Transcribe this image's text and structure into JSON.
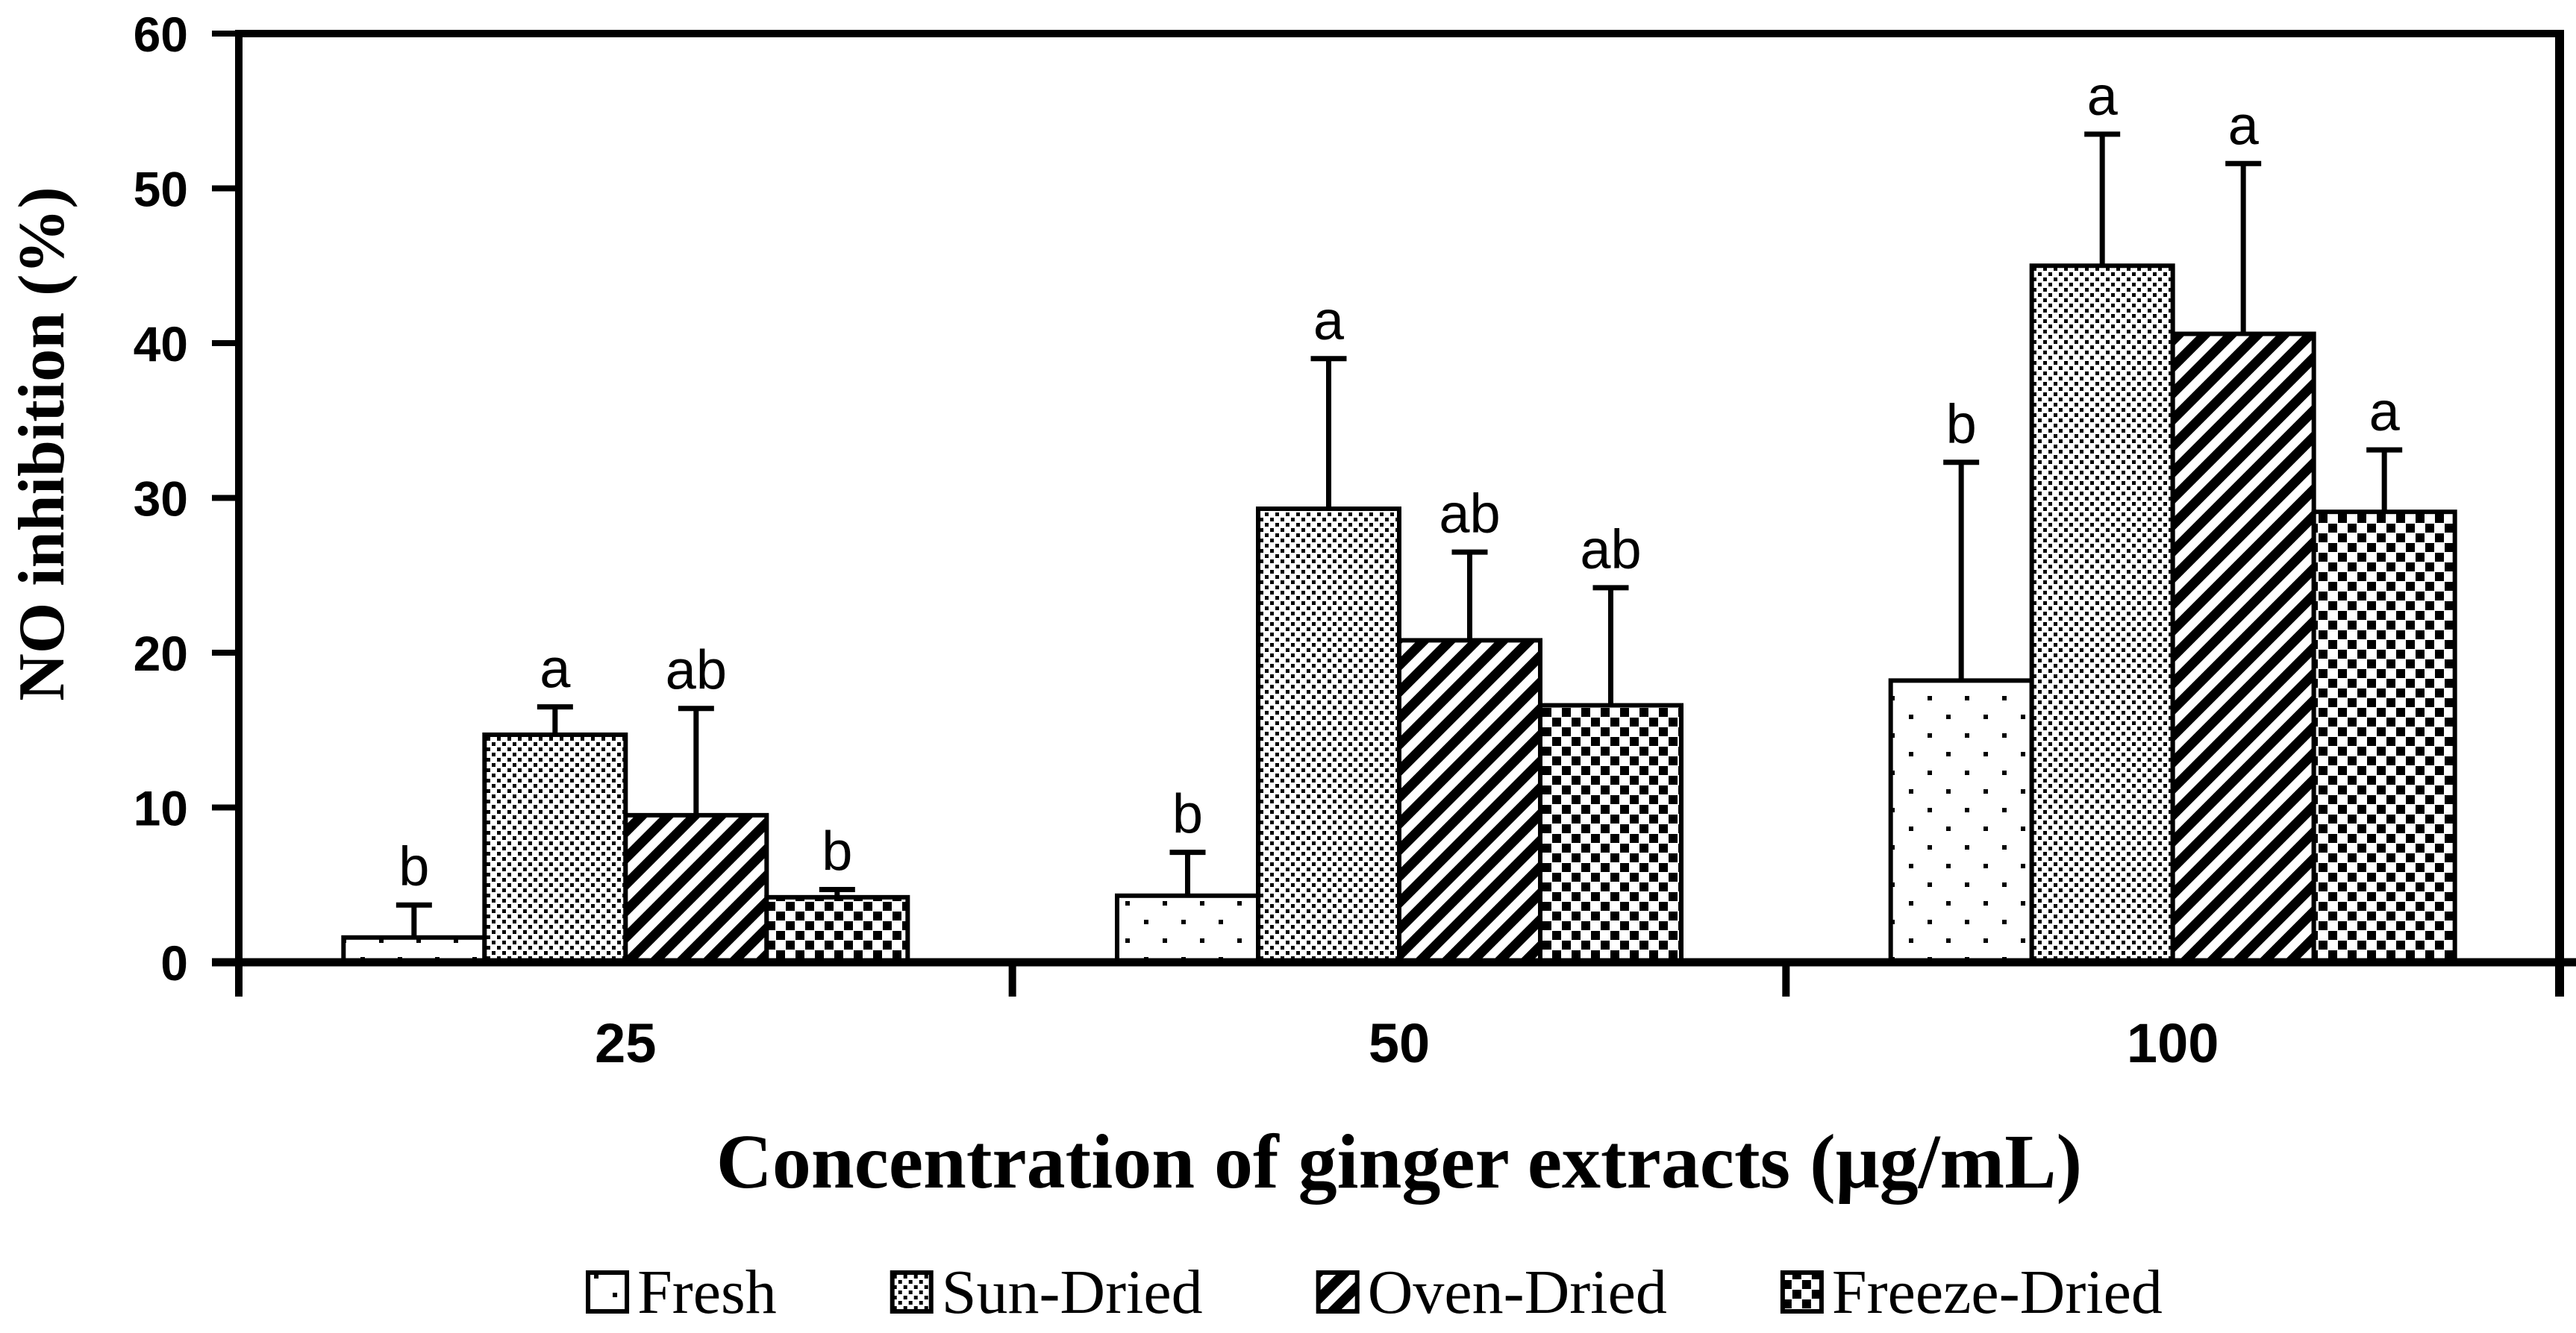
{
  "chart_data": {
    "type": "bar",
    "title": "",
    "xlabel": "Concentration of ginger extracts (μg/mL)",
    "ylabel": "NO inhibition (%)",
    "ylim": [
      0,
      60
    ],
    "yticks": [
      0,
      10,
      20,
      30,
      40,
      50,
      60
    ],
    "categories": [
      "25",
      "50",
      "100"
    ],
    "series": [
      {
        "name": "Fresh",
        "pattern": "sparse-dots",
        "values": [
          1.6,
          4.3,
          18.2
        ],
        "error_plus": [
          2.1,
          2.8,
          14.1
        ],
        "sig_letters": [
          "b",
          "b",
          "b"
        ]
      },
      {
        "name": "Sun-Dried",
        "pattern": "dense-dots",
        "values": [
          14.7,
          29.3,
          45.0
        ],
        "error_plus": [
          1.8,
          9.7,
          8.5
        ],
        "sig_letters": [
          "a",
          "a",
          "a"
        ]
      },
      {
        "name": "Oven-Dried",
        "pattern": "diagonal-stripes",
        "values": [
          9.5,
          20.8,
          40.6
        ],
        "error_plus": [
          6.9,
          5.7,
          11.0
        ],
        "sig_letters": [
          "ab",
          "ab",
          "a"
        ]
      },
      {
        "name": "Freeze-Dried",
        "pattern": "diagonal-checkers",
        "values": [
          4.2,
          16.6,
          29.1
        ],
        "error_plus": [
          0.5,
          7.6,
          4.0
        ],
        "sig_letters": [
          "b",
          "ab",
          "a"
        ]
      }
    ],
    "legend": {
      "position": "bottom",
      "labels": [
        "Fresh",
        "Sun-Dried",
        "Oven-Dried",
        "Freeze-Dried"
      ]
    },
    "grid": false,
    "error_bars": "plus-only",
    "colors": {
      "background": "#ffffff",
      "bar_fill": "#ffffff",
      "ink": "#000000"
    }
  }
}
